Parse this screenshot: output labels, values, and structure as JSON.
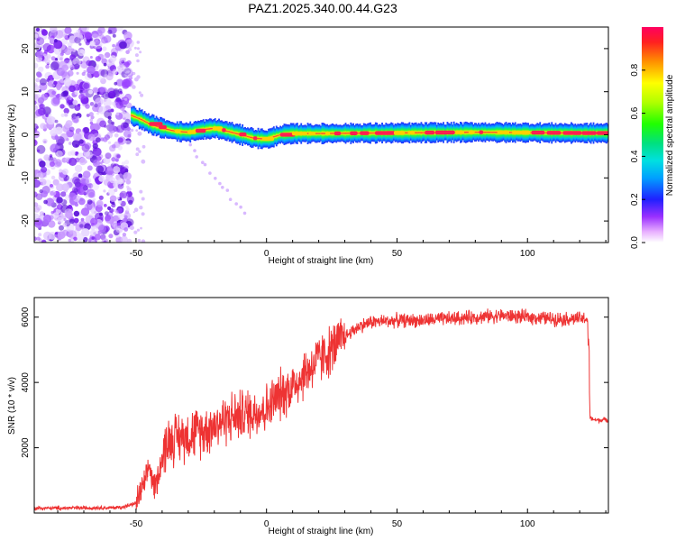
{
  "title": "PAZ1.2025.340.00.44.G23",
  "chart_data": [
    {
      "type": "heatmap",
      "name": "spectrogram",
      "xlabel": "Height of straight line (km)",
      "ylabel": "Frequency (Hz)",
      "xlim": [
        -89,
        131
      ],
      "ylim": [
        -25,
        25
      ],
      "xticks": [
        -50,
        0,
        50,
        100
      ],
      "yticks": [
        -20,
        -10,
        0,
        10,
        20
      ],
      "colorbar": {
        "label": "Normalized spectral amplitude",
        "range": [
          0,
          1
        ],
        "ticks": [
          0.0,
          0.2,
          0.4,
          0.6,
          0.8
        ]
      },
      "noise_region_km": [
        -89,
        -52
      ],
      "ridge": {
        "x": [
          -52,
          -48,
          -45,
          -40,
          -35,
          -30,
          -25,
          -20,
          -15,
          -10,
          -5,
          0,
          5,
          10,
          20,
          40,
          60,
          80,
          100,
          120,
          131
        ],
        "y": [
          4.5,
          3.5,
          2.5,
          1.5,
          0.8,
          0.6,
          1.2,
          1.5,
          0.8,
          0.0,
          -0.8,
          -1.0,
          0.0,
          0.3,
          0.3,
          0.4,
          0.5,
          0.6,
          0.5,
          0.4,
          0.4
        ]
      }
    },
    {
      "type": "line",
      "name": "snr",
      "xlabel": "Height of straight line (km)",
      "ylabel": "SNR (10 * v/v)",
      "xlim": [
        -89,
        131
      ],
      "ylim": [
        0,
        6600
      ],
      "xticks": [
        -50,
        0,
        50,
        100
      ],
      "yticks": [
        2000,
        4000,
        6000
      ],
      "series": [
        {
          "name": "SNR",
          "color": "#ee3333",
          "x": [
            -89,
            -80,
            -70,
            -60,
            -55,
            -50,
            -48,
            -46,
            -45,
            -44,
            -43,
            -42,
            -40,
            -38,
            -35,
            -30,
            -25,
            -20,
            -15,
            -10,
            -5,
            0,
            5,
            10,
            15,
            20,
            25,
            30,
            35,
            40,
            50,
            60,
            70,
            80,
            90,
            100,
            110,
            120,
            123,
            124,
            126,
            131
          ],
          "y": [
            150,
            150,
            160,
            160,
            180,
            300,
            700,
            1000,
            1500,
            1100,
            800,
            1000,
            1700,
            2200,
            2300,
            2400,
            2500,
            2700,
            2900,
            3000,
            3100,
            3200,
            3600,
            3900,
            4300,
            4700,
            5000,
            5400,
            5700,
            5850,
            5900,
            5900,
            5950,
            6000,
            6050,
            6000,
            5950,
            5950,
            5950,
            2900,
            2850,
            2850
          ]
        }
      ]
    }
  ]
}
